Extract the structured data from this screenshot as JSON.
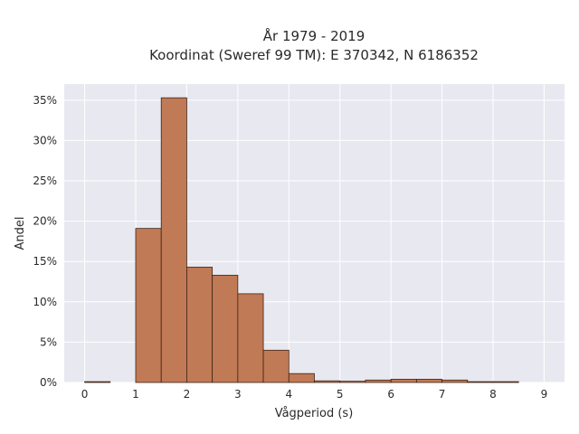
{
  "chart_data": {
    "type": "bar",
    "title": "År 1979 - 2019",
    "subtitle": "Koordinat (Sweref 99 TM): E 370342, N 6186352",
    "xlabel": "Vågperiod (s)",
    "ylabel": "Andel",
    "bin_width": 0.5,
    "bins": [
      {
        "x0": 0.0,
        "x1": 0.5,
        "value": 0.1
      },
      {
        "x0": 0.5,
        "x1": 1.0,
        "value": 0.0
      },
      {
        "x0": 1.0,
        "x1": 1.5,
        "value": 19.1
      },
      {
        "x0": 1.5,
        "x1": 2.0,
        "value": 35.3
      },
      {
        "x0": 2.0,
        "x1": 2.5,
        "value": 14.3
      },
      {
        "x0": 2.5,
        "x1": 3.0,
        "value": 13.3
      },
      {
        "x0": 3.0,
        "x1": 3.5,
        "value": 11.0
      },
      {
        "x0": 3.5,
        "x1": 4.0,
        "value": 4.0
      },
      {
        "x0": 4.0,
        "x1": 4.5,
        "value": 1.1
      },
      {
        "x0": 4.5,
        "x1": 5.0,
        "value": 0.2
      },
      {
        "x0": 5.0,
        "x1": 5.5,
        "value": 0.15
      },
      {
        "x0": 5.5,
        "x1": 6.0,
        "value": 0.3
      },
      {
        "x0": 6.0,
        "x1": 6.5,
        "value": 0.4
      },
      {
        "x0": 6.5,
        "x1": 7.0,
        "value": 0.4
      },
      {
        "x0": 7.0,
        "x1": 7.5,
        "value": 0.3
      },
      {
        "x0": 7.5,
        "x1": 8.0,
        "value": 0.1
      },
      {
        "x0": 8.0,
        "x1": 8.5,
        "value": 0.1
      }
    ],
    "xlim": [
      -0.4,
      9.4
    ],
    "ylim": [
      0,
      37
    ],
    "xticks": [
      0,
      1,
      2,
      3,
      4,
      5,
      6,
      7,
      8,
      9
    ],
    "xtick_labels": [
      "0",
      "1",
      "2",
      "3",
      "4",
      "5",
      "6",
      "7",
      "8",
      "9"
    ],
    "yticks": [
      0,
      5,
      10,
      15,
      20,
      25,
      30,
      35
    ],
    "ytick_labels": [
      "0%",
      "5%",
      "10%",
      "15%",
      "20%",
      "25%",
      "30%",
      "35%"
    ],
    "grid": true,
    "colors": {
      "bar_fill": "#c07a55",
      "bar_stroke": "#3d2418",
      "plot_bg": "#e8e8f0",
      "grid": "#ffffff"
    }
  }
}
